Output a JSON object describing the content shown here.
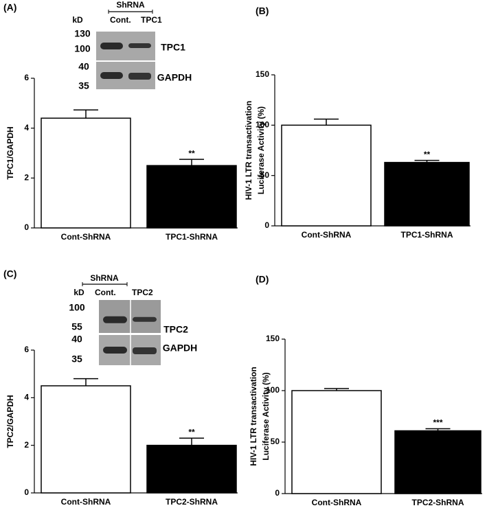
{
  "chart_data": [
    {
      "type": "bar",
      "panel_label": "(A)",
      "y_label": "TPC1/GAPDH",
      "categories": [
        "Cont-ShRNA",
        "TPC1-ShRNA"
      ],
      "values": [
        4.4,
        2.5
      ],
      "errors": [
        0.33,
        0.25
      ],
      "colors": [
        "#ffffff",
        "#000000"
      ],
      "ylim": [
        0,
        6
      ],
      "yticks": [
        0,
        2,
        4,
        6
      ],
      "annotations": [
        {
          "text": "**",
          "category": "TPC1-ShRNA"
        }
      ],
      "inset": {
        "header": "ShRNA",
        "unit": "kD",
        "lanes": [
          "Cont.",
          "TPC1"
        ],
        "blots": [
          {
            "markers": [
              "130",
              "100"
            ],
            "label": "TPC1"
          },
          {
            "markers": [
              "40",
              "35"
            ],
            "label": "GAPDH"
          }
        ]
      }
    },
    {
      "type": "bar",
      "panel_label": "(B)",
      "y_label": [
        "HIV-1 LTR transactivation",
        "Luciferase Activity (%)"
      ],
      "categories": [
        "Cont-ShRNA",
        "TPC1-ShRNA"
      ],
      "values": [
        100,
        63
      ],
      "errors": [
        6,
        2
      ],
      "colors": [
        "#ffffff",
        "#000000"
      ],
      "ylim": [
        0,
        150
      ],
      "yticks": [
        0,
        50,
        100,
        150
      ],
      "annotations": [
        {
          "text": "**",
          "category": "TPC1-ShRNA"
        }
      ]
    },
    {
      "type": "bar",
      "panel_label": "(C)",
      "y_label": "TPC2/GAPDH",
      "categories": [
        "Cont-ShRNA",
        "TPC2-ShRNA"
      ],
      "values": [
        4.5,
        2.0
      ],
      "errors": [
        0.3,
        0.3
      ],
      "colors": [
        "#ffffff",
        "#000000"
      ],
      "ylim": [
        0,
        6
      ],
      "yticks": [
        0,
        2,
        4,
        6
      ],
      "annotations": [
        {
          "text": "**",
          "category": "TPC2-ShRNA"
        }
      ],
      "inset": {
        "header": "ShRNA",
        "unit": "kD",
        "lanes": [
          "Cont.",
          "TPC2"
        ],
        "blots": [
          {
            "markers": [
              "100",
              "55"
            ],
            "label": "TPC2"
          },
          {
            "markers": [
              "40",
              "35"
            ],
            "label": "GAPDH"
          }
        ]
      }
    },
    {
      "type": "bar",
      "panel_label": "(D)",
      "y_label": [
        "HIV-1 LTR transactivation",
        "Luciferase Activity (%)"
      ],
      "categories": [
        "Cont-ShRNA",
        "TPC2-ShRNA"
      ],
      "values": [
        100,
        61
      ],
      "errors": [
        2,
        2
      ],
      "colors": [
        "#ffffff",
        "#000000"
      ],
      "ylim": [
        0,
        150
      ],
      "yticks": [
        0,
        50,
        100,
        150
      ],
      "annotations": [
        {
          "text": "***",
          "category": "TPC2-ShRNA"
        }
      ]
    }
  ]
}
